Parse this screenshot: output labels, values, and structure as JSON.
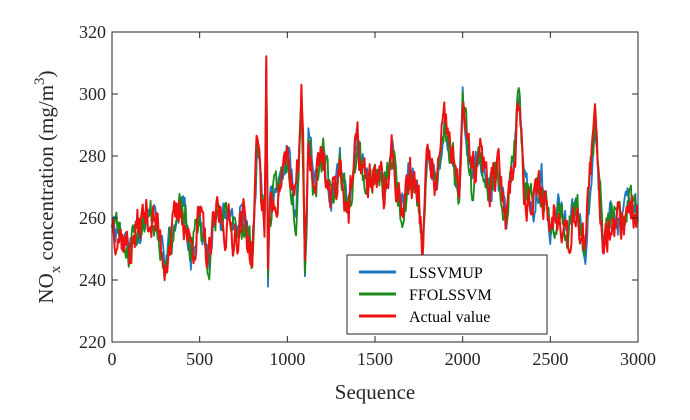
{
  "chart_data": {
    "type": "line",
    "xlabel": "Sequence",
    "ylabel": {
      "main": "NO",
      "main_sub": "x",
      "rest": " concentration (mg/m",
      "sup": "3",
      "close": ")"
    },
    "xlim": [
      0,
      3000
    ],
    "ylim": [
      220,
      320
    ],
    "xticks": [
      0,
      500,
      1000,
      1500,
      2000,
      2500,
      3000
    ],
    "yticks": [
      220,
      240,
      260,
      280,
      300,
      320
    ],
    "grid": false,
    "legend_position": "bottom-right",
    "series": [
      {
        "name": "LSSVMUP",
        "color": "#1f77c4",
        "seed": 11
      },
      {
        "name": "FFOLSSVM",
        "color": "#1a8a1a",
        "seed": 23
      },
      {
        "name": "Actual value",
        "color": "#ee1111",
        "seed": 37
      }
    ],
    "x": [
      0,
      50,
      100,
      150,
      200,
      250,
      300,
      350,
      400,
      450,
      500,
      550,
      600,
      650,
      700,
      750,
      800,
      830,
      850,
      870,
      880,
      890,
      900,
      950,
      1000,
      1050,
      1080,
      1090,
      1100,
      1110,
      1120,
      1150,
      1200,
      1250,
      1300,
      1350,
      1400,
      1450,
      1500,
      1550,
      1600,
      1650,
      1700,
      1750,
      1770,
      1800,
      1850,
      1900,
      1950,
      1980,
      1990,
      2000,
      2050,
      2100,
      2150,
      2200,
      2250,
      2300,
      2320,
      2350,
      2400,
      2450,
      2500,
      2550,
      2600,
      2650,
      2700,
      2740,
      2760,
      2780,
      2800,
      2850,
      2900,
      2950,
      3000
    ],
    "actual_value": [
      260,
      255,
      250,
      257,
      262,
      258,
      247,
      256,
      263,
      250,
      260,
      245,
      262,
      258,
      255,
      260,
      248,
      287,
      270,
      258,
      310,
      240,
      262,
      270,
      280,
      262,
      300,
      280,
      245,
      260,
      288,
      270,
      282,
      265,
      278,
      262,
      284,
      270,
      275,
      268,
      280,
      262,
      275,
      265,
      250,
      280,
      270,
      290,
      278,
      265,
      285,
      300,
      272,
      280,
      268,
      275,
      262,
      285,
      300,
      272,
      262,
      270,
      258,
      265,
      255,
      265,
      250,
      282,
      290,
      270,
      252,
      262,
      258,
      265,
      262
    ]
  }
}
